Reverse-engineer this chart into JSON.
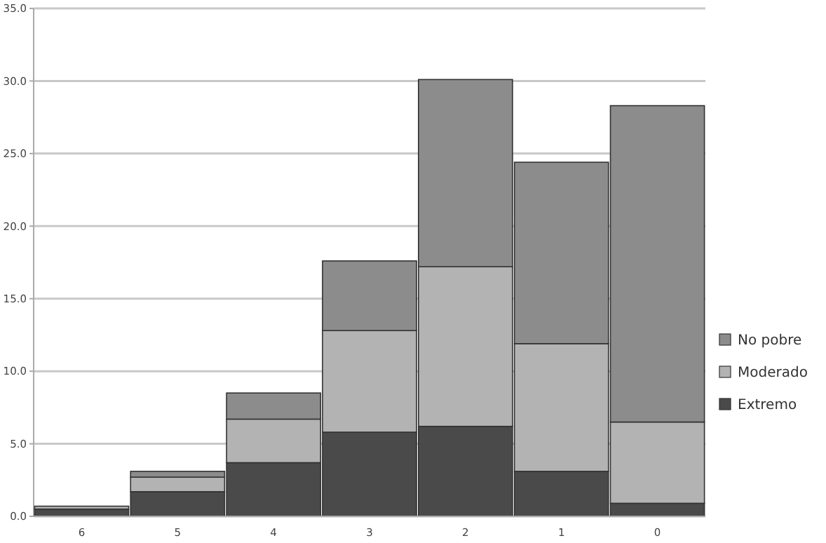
{
  "chart_data": {
    "type": "bar",
    "stacked": true,
    "categories": [
      "6",
      "5",
      "4",
      "3",
      "2",
      "1",
      "0"
    ],
    "series": [
      {
        "name": "Extremo",
        "color": "#4a4a4a",
        "values": [
          0.5,
          1.7,
          3.7,
          5.8,
          6.2,
          3.1,
          0.9
        ]
      },
      {
        "name": "Moderado",
        "color": "#b3b3b3",
        "values": [
          0.2,
          1.0,
          3.0,
          7.0,
          11.0,
          8.8,
          5.6
        ]
      },
      {
        "name": "No pobre",
        "color": "#8c8c8c",
        "values": [
          0,
          0.4,
          1.8,
          4.8,
          12.9,
          12.5,
          21.8
        ]
      }
    ],
    "ylim": [
      0,
      35
    ],
    "yticks": [
      {
        "value": 0,
        "label": "0.0"
      },
      {
        "value": 5,
        "label": "5.0"
      },
      {
        "value": 10,
        "label": "10.0"
      },
      {
        "value": 15,
        "label": "15.0"
      },
      {
        "value": 20,
        "label": "20.0"
      },
      {
        "value": 25,
        "label": "25.0"
      },
      {
        "value": 30,
        "label": "30.0"
      },
      {
        "value": 35,
        "label": "35.0"
      }
    ],
    "grid": "y",
    "legend": "right"
  }
}
